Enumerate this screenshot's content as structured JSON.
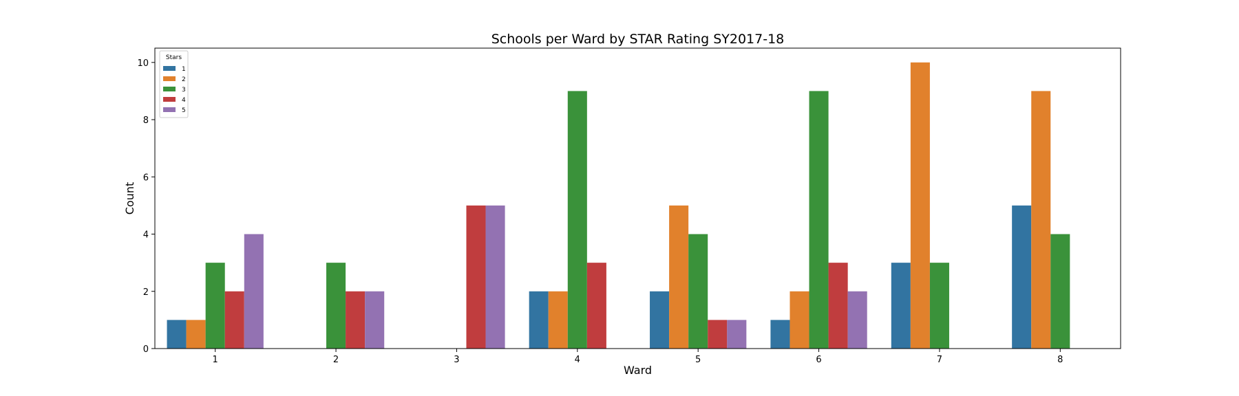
{
  "chart_data": {
    "type": "bar",
    "title": "Schools per Ward by STAR Rating SY2017-18",
    "xlabel": "Ward",
    "ylabel": "Count",
    "categories": [
      "1",
      "2",
      "3",
      "4",
      "5",
      "6",
      "7",
      "8"
    ],
    "ylim": [
      0,
      10.5
    ],
    "yticks": [
      0,
      2,
      4,
      6,
      8,
      10
    ],
    "grid": false,
    "legend": {
      "title": "Stars",
      "placement": "top-left"
    },
    "series": [
      {
        "name": "1",
        "color": "#3274a1",
        "values": [
          1,
          0,
          0,
          2,
          2,
          1,
          3,
          5
        ]
      },
      {
        "name": "2",
        "color": "#e1812c",
        "values": [
          1,
          0,
          0,
          2,
          5,
          2,
          10,
          9
        ]
      },
      {
        "name": "3",
        "color": "#3a923a",
        "values": [
          3,
          3,
          0,
          9,
          4,
          9,
          3,
          4
        ]
      },
      {
        "name": "4",
        "color": "#c03d3e",
        "values": [
          2,
          2,
          5,
          3,
          1,
          3,
          0,
          0
        ]
      },
      {
        "name": "5",
        "color": "#9372b2",
        "values": [
          4,
          2,
          5,
          0,
          1,
          2,
          0,
          0
        ]
      }
    ]
  }
}
